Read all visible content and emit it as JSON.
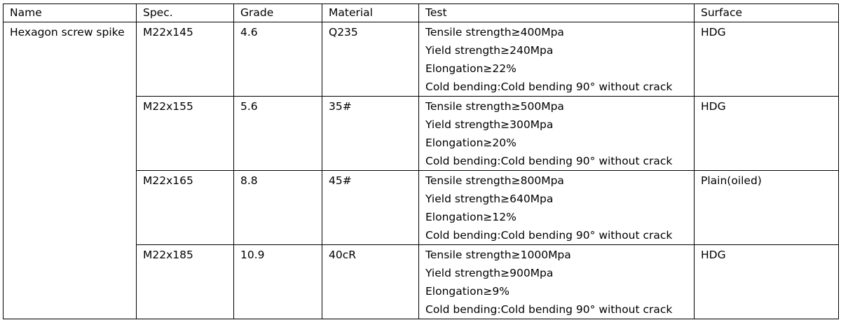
{
  "headers": [
    "Name",
    "Spec.",
    "Grade",
    "Material",
    "Test",
    "Surface"
  ],
  "name": "Hexagon screw spike",
  "rows": [
    {
      "spec": "M22x145",
      "grade": "4.6",
      "material": "Q235",
      "test": [
        "Tensile strength≥400Mpa",
        "Yield strength≥240Mpa",
        "Elongation≥22%",
        "Cold bending:Cold bending 90°  without crack"
      ],
      "surface": "HDG"
    },
    {
      "spec": "M22x155",
      "grade": "5.6",
      "material": "35#",
      "test": [
        "Tensile strength≥500Mpa",
        "Yield strength≥300Mpa",
        "Elongation≥20%",
        "Cold bending:Cold bending 90°  without crack"
      ],
      "surface": "HDG"
    },
    {
      "spec": "M22x165",
      "grade": "8.8",
      "material": "45#",
      "test": [
        "Tensile strength≥800Mpa",
        "Yield strength≥640Mpa",
        "Elongation≥12%",
        "Cold bending:Cold bending 90°  without crack"
      ],
      "surface": "Plain(oiled)"
    },
    {
      "spec": "M22x185",
      "grade": "10.9",
      "material": "40cR",
      "test": [
        "Tensile strength≥1000Mpa",
        "Yield strength≥900Mpa",
        "Elongation≥9%",
        "Cold bending:Cold bending 90°  without crack"
      ],
      "surface": "HDG"
    }
  ]
}
